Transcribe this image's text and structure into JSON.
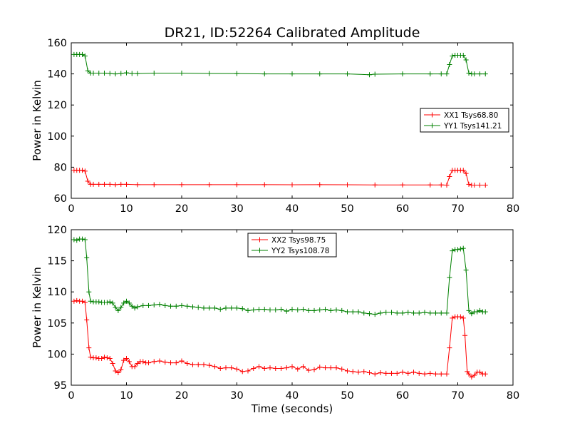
{
  "chart_data": [
    {
      "type": "line",
      "title": "DR21, ID:52264 Calibrated Amplitude",
      "xlabel": "",
      "ylabel": "Power in Kelvin",
      "xlim": [
        0,
        80
      ],
      "ylim": [
        60,
        160
      ],
      "xticks": [
        0,
        10,
        20,
        30,
        40,
        50,
        60,
        70,
        80
      ],
      "yticks": [
        60,
        80,
        100,
        120,
        140,
        160
      ],
      "legend_position": "center-right",
      "grid": false,
      "series": [
        {
          "name": "XX1 Tsys68.80",
          "color": "#ff0000",
          "marker": "plus",
          "points": [
            [
              0.5,
              78
            ],
            [
              1.0,
              78
            ],
            [
              1.5,
              78
            ],
            [
              2.0,
              78
            ],
            [
              2.5,
              77.5
            ],
            [
              3.0,
              71
            ],
            [
              3.5,
              69
            ],
            [
              4,
              69
            ],
            [
              5,
              69
            ],
            [
              6,
              69
            ],
            [
              7,
              69
            ],
            [
              8,
              68.8
            ],
            [
              9,
              69
            ],
            [
              10,
              69
            ],
            [
              12,
              68.8
            ],
            [
              15,
              68.8
            ],
            [
              20,
              68.8
            ],
            [
              25,
              68.8
            ],
            [
              30,
              68.8
            ],
            [
              35,
              68.8
            ],
            [
              40,
              68.7
            ],
            [
              45,
              68.8
            ],
            [
              50,
              68.7
            ],
            [
              55,
              68.6
            ],
            [
              60,
              68.6
            ],
            [
              65,
              68.6
            ],
            [
              67,
              68.6
            ],
            [
              68,
              68.5
            ],
            [
              68.5,
              74
            ],
            [
              69,
              78
            ],
            [
              69.5,
              78
            ],
            [
              70,
              78
            ],
            [
              70.5,
              78
            ],
            [
              71,
              78
            ],
            [
              71.5,
              76
            ],
            [
              72,
              69
            ],
            [
              72.5,
              68.5
            ],
            [
              73,
              68.5
            ],
            [
              74,
              68.5
            ],
            [
              75,
              68.5
            ]
          ]
        },
        {
          "name": "YY1 Tsys141.21",
          "color": "#008000",
          "marker": "plus",
          "points": [
            [
              0.5,
              152.5
            ],
            [
              1.0,
              152.5
            ],
            [
              1.5,
              152.5
            ],
            [
              2.0,
              152.5
            ],
            [
              2.5,
              151.5
            ],
            [
              3.0,
              142
            ],
            [
              3.5,
              140.5
            ],
            [
              4,
              140.5
            ],
            [
              5,
              140.5
            ],
            [
              6,
              140.5
            ],
            [
              7,
              140.3
            ],
            [
              8,
              140
            ],
            [
              9,
              140.3
            ],
            [
              10,
              140.7
            ],
            [
              11,
              140.3
            ],
            [
              12,
              140.2
            ],
            [
              15,
              140.5
            ],
            [
              20,
              140.5
            ],
            [
              25,
              140.3
            ],
            [
              30,
              140.2
            ],
            [
              35,
              140
            ],
            [
              40,
              140
            ],
            [
              45,
              140
            ],
            [
              50,
              140
            ],
            [
              54,
              139.5
            ],
            [
              55,
              139.8
            ],
            [
              60,
              140
            ],
            [
              65,
              140
            ],
            [
              67,
              140
            ],
            [
              68,
              140
            ],
            [
              68.5,
              146
            ],
            [
              69,
              151.5
            ],
            [
              69.5,
              152
            ],
            [
              70,
              152
            ],
            [
              70.5,
              152
            ],
            [
              71,
              152
            ],
            [
              71.5,
              149
            ],
            [
              72,
              140.5
            ],
            [
              72.5,
              140
            ],
            [
              73,
              140
            ],
            [
              74,
              140
            ],
            [
              75,
              140
            ]
          ]
        }
      ]
    },
    {
      "type": "line",
      "title": "",
      "xlabel": "Time (seconds)",
      "ylabel": "Power in Kelvin",
      "xlim": [
        0,
        80
      ],
      "ylim": [
        95,
        120
      ],
      "xticks": [
        0,
        10,
        20,
        30,
        40,
        50,
        60,
        70,
        80
      ],
      "yticks": [
        95,
        100,
        105,
        110,
        115,
        120
      ],
      "legend_position": "upper-center",
      "grid": false,
      "series": [
        {
          "name": "XX2 Tsys98.75",
          "color": "#ff0000",
          "marker": "plus",
          "points": [
            [
              0.5,
              108.5
            ],
            [
              1.0,
              108.6
            ],
            [
              1.5,
              108.5
            ],
            [
              2.0,
              108.5
            ],
            [
              2.5,
              108.3
            ],
            [
              2.8,
              105.5
            ],
            [
              3.2,
              101
            ],
            [
              3.5,
              99.5
            ],
            [
              4,
              99.4
            ],
            [
              4.5,
              99.4
            ],
            [
              5,
              99.3
            ],
            [
              5.5,
              99.3
            ],
            [
              6,
              99.5
            ],
            [
              6.5,
              99.4
            ],
            [
              7,
              99.3
            ],
            [
              7.5,
              98.5
            ],
            [
              8,
              97.3
            ],
            [
              8.5,
              97
            ],
            [
              9,
              97.5
            ],
            [
              9.5,
              99
            ],
            [
              10,
              99.3
            ],
            [
              10.5,
              98.8
            ],
            [
              11,
              98
            ],
            [
              11.5,
              98
            ],
            [
              12,
              98.5
            ],
            [
              12.5,
              98.8
            ],
            [
              13,
              98.8
            ],
            [
              13.5,
              98.6
            ],
            [
              14,
              98.6
            ],
            [
              15,
              98.8
            ],
            [
              16,
              98.9
            ],
            [
              17,
              98.7
            ],
            [
              18,
              98.6
            ],
            [
              19,
              98.6
            ],
            [
              20,
              98.9
            ],
            [
              21,
              98.5
            ],
            [
              22,
              98.3
            ],
            [
              23,
              98.3
            ],
            [
              24,
              98.3
            ],
            [
              25,
              98.2
            ],
            [
              26,
              98
            ],
            [
              27,
              97.7
            ],
            [
              28,
              97.8
            ],
            [
              29,
              97.8
            ],
            [
              30,
              97.6
            ],
            [
              31,
              97.2
            ],
            [
              32,
              97.3
            ],
            [
              33,
              97.7
            ],
            [
              34,
              98
            ],
            [
              35,
              97.7
            ],
            [
              36,
              97.8
            ],
            [
              37,
              97.7
            ],
            [
              38,
              97.7
            ],
            [
              39,
              97.8
            ],
            [
              40,
              98
            ],
            [
              41,
              97.6
            ],
            [
              42,
              98
            ],
            [
              43,
              97.4
            ],
            [
              44,
              97.5
            ],
            [
              45,
              97.9
            ],
            [
              46,
              97.8
            ],
            [
              47,
              97.8
            ],
            [
              48,
              97.8
            ],
            [
              49,
              97.6
            ],
            [
              50,
              97.3
            ],
            [
              51,
              97.2
            ],
            [
              52,
              97.1
            ],
            [
              53,
              97.2
            ],
            [
              54,
              97
            ],
            [
              55,
              96.8
            ],
            [
              56,
              97
            ],
            [
              57,
              96.9
            ],
            [
              58,
              96.9
            ],
            [
              59,
              96.9
            ],
            [
              60,
              97.1
            ],
            [
              61,
              96.9
            ],
            [
              62,
              97.1
            ],
            [
              63,
              96.9
            ],
            [
              64,
              96.8
            ],
            [
              65,
              96.9
            ],
            [
              66,
              96.8
            ],
            [
              67,
              96.8
            ],
            [
              68,
              96.8
            ],
            [
              68.5,
              101
            ],
            [
              69,
              105.8
            ],
            [
              69.5,
              106
            ],
            [
              70,
              106
            ],
            [
              70.5,
              106
            ],
            [
              71,
              105.8
            ],
            [
              71.3,
              103
            ],
            [
              71.7,
              97.2
            ],
            [
              72,
              96.8
            ],
            [
              72.5,
              96.3
            ],
            [
              73,
              96.6
            ],
            [
              73.5,
              97.1
            ],
            [
              74,
              97.1
            ],
            [
              74.5,
              96.8
            ],
            [
              75,
              96.8
            ]
          ]
        },
        {
          "name": "YY2 Tsys108.78",
          "color": "#008000",
          "marker": "plus",
          "points": [
            [
              0.5,
              118.4
            ],
            [
              1.0,
              118.3
            ],
            [
              1.5,
              118.5
            ],
            [
              2.0,
              118.5
            ],
            [
              2.5,
              118.4
            ],
            [
              2.8,
              115.5
            ],
            [
              3.2,
              110
            ],
            [
              3.5,
              108.5
            ],
            [
              4,
              108.4
            ],
            [
              4.5,
              108.4
            ],
            [
              5,
              108.4
            ],
            [
              5.5,
              108.3
            ],
            [
              6,
              108.3
            ],
            [
              6.5,
              108.3
            ],
            [
              7,
              108.4
            ],
            [
              7.5,
              108.2
            ],
            [
              8,
              107.5
            ],
            [
              8.5,
              107
            ],
            [
              9,
              107.5
            ],
            [
              9.5,
              108.2
            ],
            [
              10,
              108.5
            ],
            [
              10.5,
              108.2
            ],
            [
              11,
              107.7
            ],
            [
              11.5,
              107.4
            ],
            [
              12,
              107.6
            ],
            [
              13,
              107.8
            ],
            [
              14,
              107.8
            ],
            [
              15,
              107.9
            ],
            [
              16,
              108
            ],
            [
              17,
              107.8
            ],
            [
              18,
              107.7
            ],
            [
              19,
              107.7
            ],
            [
              20,
              107.8
            ],
            [
              21,
              107.7
            ],
            [
              22,
              107.6
            ],
            [
              23,
              107.5
            ],
            [
              24,
              107.4
            ],
            [
              25,
              107.4
            ],
            [
              26,
              107.4
            ],
            [
              27,
              107.2
            ],
            [
              28,
              107.4
            ],
            [
              29,
              107.4
            ],
            [
              30,
              107.4
            ],
            [
              31,
              107.3
            ],
            [
              32,
              107
            ],
            [
              33,
              107.1
            ],
            [
              34,
              107.2
            ],
            [
              35,
              107.2
            ],
            [
              36,
              107.1
            ],
            [
              37,
              107.1
            ],
            [
              38,
              107.2
            ],
            [
              39,
              106.9
            ],
            [
              40,
              107.2
            ],
            [
              41,
              107.1
            ],
            [
              42,
              107.2
            ],
            [
              43,
              107
            ],
            [
              44,
              107
            ],
            [
              45,
              107.1
            ],
            [
              46,
              107.2
            ],
            [
              47,
              107
            ],
            [
              48,
              107.1
            ],
            [
              49,
              107
            ],
            [
              50,
              106.8
            ],
            [
              51,
              106.8
            ],
            [
              52,
              106.8
            ],
            [
              53,
              106.6
            ],
            [
              54,
              106.5
            ],
            [
              55,
              106.4
            ],
            [
              56,
              106.6
            ],
            [
              57,
              106.7
            ],
            [
              58,
              106.7
            ],
            [
              59,
              106.6
            ],
            [
              60,
              106.6
            ],
            [
              61,
              106.7
            ],
            [
              62,
              106.6
            ],
            [
              63,
              106.6
            ],
            [
              64,
              106.7
            ],
            [
              65,
              106.6
            ],
            [
              66,
              106.6
            ],
            [
              67,
              106.6
            ],
            [
              68,
              106.6
            ],
            [
              68.5,
              112.3
            ],
            [
              69,
              116.6
            ],
            [
              69.5,
              116.8
            ],
            [
              70,
              116.8
            ],
            [
              70.5,
              116.9
            ],
            [
              71,
              117
            ],
            [
              71.5,
              113.5
            ],
            [
              72,
              107
            ],
            [
              72.5,
              106.5
            ],
            [
              73,
              106.8
            ],
            [
              73.5,
              106.8
            ],
            [
              74,
              107
            ],
            [
              74.5,
              106.8
            ],
            [
              75,
              106.8
            ]
          ]
        }
      ]
    }
  ]
}
